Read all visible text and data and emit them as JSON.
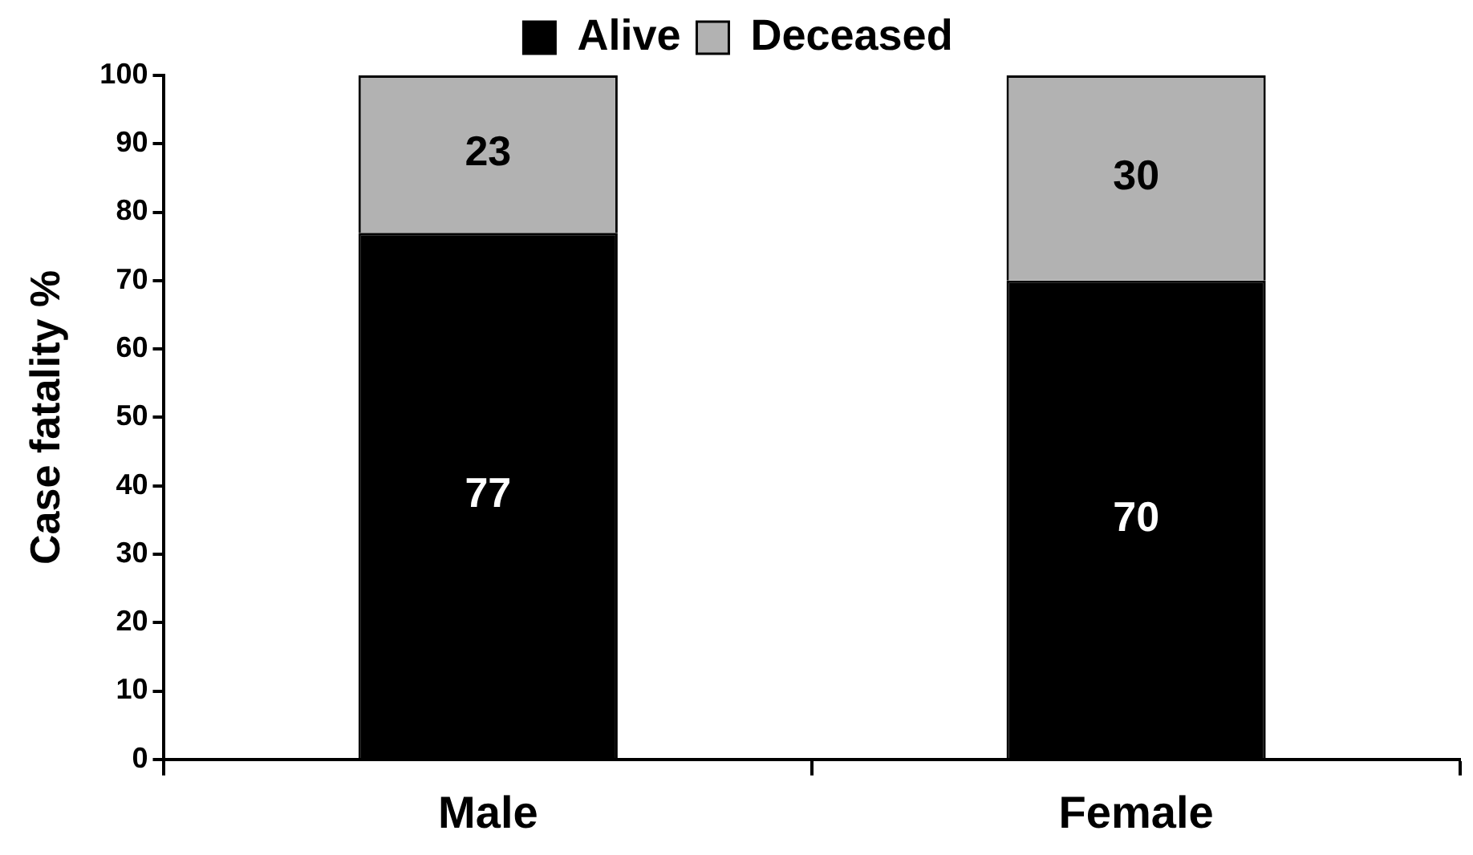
{
  "chart_data": {
    "type": "bar",
    "stacked": true,
    "ylabel": "Case fatality %",
    "categories": [
      "Male",
      "Female"
    ],
    "series": [
      {
        "name": "Alive",
        "color": "#000000",
        "values": [
          77,
          70
        ]
      },
      {
        "name": "Deceased",
        "color": "#b2b2b2",
        "values": [
          23,
          30
        ]
      }
    ],
    "ylim": [
      0,
      100
    ],
    "yticks": [
      0,
      10,
      20,
      30,
      40,
      50,
      60,
      70,
      80,
      90,
      100
    ],
    "grid": false,
    "legend": "top",
    "data_labels": true
  }
}
